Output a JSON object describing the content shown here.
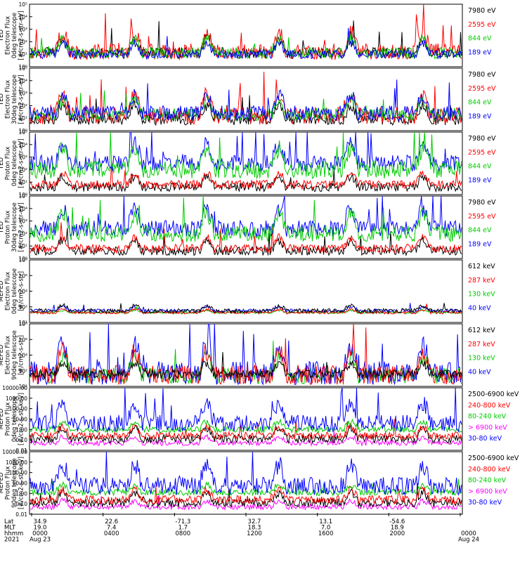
{
  "chart_data": [
    {
      "type": "line",
      "panel": "TED electron flux 0deg telescope",
      "ylabel": [
        "TED",
        "Electron Flux",
        "0deg telescope",
        "[#/cm2-s-str-eV]"
      ],
      "yscale": "log",
      "ylim": [
        1,
        100000
      ],
      "ytick_labels": [
        "10⁰",
        "10¹",
        "10²",
        "10³",
        "10⁴",
        "10⁵"
      ],
      "series": [
        {
          "name": "7980 eV",
          "color": "#000000",
          "seed": 11,
          "base": 1.1,
          "amp": 0.9,
          "spikes": 0.7
        },
        {
          "name": "2595 eV",
          "color": "#ff0000",
          "seed": 12,
          "base": 1.2,
          "amp": 1.3,
          "spikes": 0.9
        },
        {
          "name": "844 eV",
          "color": "#00cc00",
          "seed": 13,
          "base": 1.1,
          "amp": 0.9,
          "spikes": 0.3
        },
        {
          "name": "189 eV",
          "color": "#0000ff",
          "seed": 14,
          "base": 1.0,
          "amp": 0.7,
          "spikes": 0.2
        }
      ]
    },
    {
      "type": "line",
      "panel": "TED electron flux 30deg telescope",
      "ylabel": [
        "TED",
        "Electron Flux",
        "30deg telescope",
        "[#/cm2-s-str-eV]"
      ],
      "yscale": "log",
      "ylim": [
        1,
        100000
      ],
      "ytick_labels": [
        "10⁰",
        "10¹",
        "10²",
        "10³",
        "10⁴",
        "10⁵"
      ],
      "series": [
        {
          "name": "7980 eV",
          "color": "#000000",
          "seed": 21,
          "base": 0.9,
          "amp": 0.9,
          "spikes": 0.5
        },
        {
          "name": "2595 eV",
          "color": "#ff0000",
          "seed": 22,
          "base": 1.2,
          "amp": 1.4,
          "spikes": 0.8
        },
        {
          "name": "844 eV",
          "color": "#00cc00",
          "seed": 23,
          "base": 1.3,
          "amp": 1.0,
          "spikes": 0.4
        },
        {
          "name": "189 eV",
          "color": "#0000ff",
          "seed": 24,
          "base": 1.4,
          "amp": 1.2,
          "spikes": 0.6
        }
      ]
    },
    {
      "type": "line",
      "panel": "TED proton flux 0deg telescope",
      "ylabel": [
        "TED",
        "Proton Flux",
        "0deg telescope",
        "[#/cm2-s-str-eV]"
      ],
      "yscale": "log",
      "ylim": [
        1,
        100000
      ],
      "ytick_labels": [
        "10⁰",
        "10¹",
        "10²",
        "10³",
        "10⁴",
        "10⁵"
      ],
      "series": [
        {
          "name": "7980 eV",
          "color": "#000000",
          "seed": 31,
          "base": 0.6,
          "amp": 0.7,
          "spikes": 0.2
        },
        {
          "name": "2595 eV",
          "color": "#ff0000",
          "seed": 32,
          "base": 0.8,
          "amp": 0.7,
          "spikes": 0.2
        },
        {
          "name": "189 eV",
          "color": "#0000ff",
          "seed": 34,
          "base": 2.5,
          "amp": 1.3,
          "spikes": 0.9
        },
        {
          "name": "844 eV",
          "color": "#00cc00",
          "seed": 33,
          "base": 2.0,
          "amp": 1.4,
          "spikes": 0.5
        }
      ]
    },
    {
      "type": "line",
      "panel": "TED proton flux 30deg telescope",
      "ylabel": [
        "TED",
        "Proton Flux",
        "30deg telescope",
        "[#/cm2-s-str-eV]"
      ],
      "yscale": "log",
      "ylim": [
        1,
        100000
      ],
      "ytick_labels": [
        "10⁰",
        "10¹",
        "10²",
        "10³",
        "10⁴",
        "10⁵"
      ],
      "series": [
        {
          "name": "7980 eV",
          "color": "#000000",
          "seed": 41,
          "base": 0.6,
          "amp": 0.7,
          "spikes": 0.2
        },
        {
          "name": "2595 eV",
          "color": "#ff0000",
          "seed": 42,
          "base": 0.8,
          "amp": 0.7,
          "spikes": 0.2
        },
        {
          "name": "189 eV",
          "color": "#0000ff",
          "seed": 44,
          "base": 2.4,
          "amp": 1.3,
          "spikes": 0.9
        },
        {
          "name": "844 eV",
          "color": "#00cc00",
          "seed": 43,
          "base": 2.0,
          "amp": 1.3,
          "spikes": 0.5
        }
      ]
    },
    {
      "type": "line",
      "panel": "MEPED electron flux 0deg telescope",
      "ylabel": [
        "MEPED",
        "Electron Flux",
        "0deg telescope",
        "[#/cm2-s-str]"
      ],
      "yscale": "log",
      "ylim": [
        10,
        100000000
      ],
      "ytick_labels": [
        "10¹",
        "10²",
        "10⁴",
        "10⁶",
        "10⁸"
      ],
      "series": [
        {
          "name": "40 keV",
          "color": "#0000ff",
          "seed": 51,
          "base": 2.3,
          "amp": 0.4,
          "spikes": 0.2
        },
        {
          "name": "130 keV",
          "color": "#00cc00",
          "seed": 52,
          "base": 2.1,
          "amp": 0.2,
          "spikes": 0.1
        },
        {
          "name": "287 keV",
          "color": "#ff0000",
          "seed": 53,
          "base": 2.1,
          "amp": 0.3,
          "spikes": 0.1
        },
        {
          "name": "612 keV",
          "color": "#000000",
          "seed": 54,
          "base": 2.3,
          "amp": 0.5,
          "spikes": 0.2
        }
      ]
    },
    {
      "type": "line",
      "panel": "MEPED electron flux 90deg telescope",
      "ylabel": [
        "MEPED",
        "Electron Flux",
        "90deg telescope",
        "[#/cm2-s-str]"
      ],
      "yscale": "log",
      "ylim": [
        10,
        100000000
      ],
      "ytick_labels": [
        "10¹",
        "10²",
        "10⁴",
        "10⁶",
        "10⁸"
      ],
      "series": [
        {
          "name": "130 keV",
          "color": "#00cc00",
          "seed": 62,
          "base": 2.2,
          "amp": 1.8,
          "spikes": 0.3
        },
        {
          "name": "40 keV",
          "color": "#0000ff",
          "seed": 61,
          "base": 2.5,
          "amp": 2.6,
          "spikes": 0.6
        },
        {
          "name": "287 keV",
          "color": "#ff0000",
          "seed": 63,
          "base": 2.3,
          "amp": 2.2,
          "spikes": 0.4
        },
        {
          "name": "612 keV",
          "color": "#000000",
          "seed": 64,
          "base": 2.4,
          "amp": 1.0,
          "spikes": 0.2
        }
      ]
    },
    {
      "type": "line",
      "panel": "MEPED proton flux 0deg telescope",
      "ylabel": [
        "MEPED",
        "Proton Flux",
        "0deg telescope",
        "[#/cm2-s-str-keV]"
      ],
      "yscale": "log",
      "ylim": [
        0.01,
        10000
      ],
      "ytick_labels": [
        "0.01",
        "0.10",
        "1.00",
        "10.00",
        "100.00",
        "1000.00",
        "10000.00"
      ],
      "series": [
        {
          "name": "> 6900 keV",
          "color": "#ff00ff",
          "seed": 71,
          "base": -1.3,
          "amp": 0.5,
          "spikes": 0.2
        },
        {
          "name": "2500-6900 keV",
          "color": "#000000",
          "seed": 72,
          "base": -0.9,
          "amp": 0.8,
          "spikes": 0.2
        },
        {
          "name": "240-800 keV",
          "color": "#ff0000",
          "seed": 73,
          "base": -0.6,
          "amp": 0.7,
          "spikes": 0.2
        },
        {
          "name": "80-240 keV",
          "color": "#00cc00",
          "seed": 74,
          "base": 0.0,
          "amp": 0.6,
          "spikes": 0.2
        },
        {
          "name": "30-80 keV",
          "color": "#0000ff",
          "seed": 75,
          "base": 0.6,
          "amp": 1.6,
          "spikes": 0.6
        }
      ]
    },
    {
      "type": "line",
      "panel": "MEPED proton flux 90deg telescope",
      "ylabel": [
        "MEPED",
        "Proton Flux",
        "90deg telescope",
        "[#/cm2-s-str-keV]"
      ],
      "yscale": "log",
      "ylim": [
        0.01,
        10000
      ],
      "ytick_labels": [
        "0.01",
        "0.10",
        "1.00",
        "10.00",
        "100.00",
        "1000.00",
        "10000.00"
      ],
      "series": [
        {
          "name": "> 6900 keV",
          "color": "#ff00ff",
          "seed": 81,
          "base": -1.3,
          "amp": 0.5,
          "spikes": 0.2
        },
        {
          "name": "2500-6900 keV",
          "color": "#000000",
          "seed": 82,
          "base": -0.9,
          "amp": 0.8,
          "spikes": 0.2
        },
        {
          "name": "240-800 keV",
          "color": "#ff0000",
          "seed": 83,
          "base": -0.6,
          "amp": 0.8,
          "spikes": 0.2
        },
        {
          "name": "80-240 keV",
          "color": "#00cc00",
          "seed": 84,
          "base": 0.1,
          "amp": 0.6,
          "spikes": 0.2
        },
        {
          "name": "30-80 keV",
          "color": "#0000ff",
          "seed": 85,
          "base": 0.7,
          "amp": 1.7,
          "spikes": 0.7
        }
      ]
    }
  ],
  "time_axis": {
    "row_labels": [
      "Lat",
      "MLT",
      "hhmm",
      "2021"
    ],
    "ticks": [
      {
        "lat": "34.9",
        "mlt": "19.0",
        "hhmm": "0000",
        "date": "Aug 23"
      },
      {
        "lat": "22.6",
        "mlt": "7.4",
        "hhmm": "0400",
        "date": ""
      },
      {
        "lat": "-71.3",
        "mlt": "1.7",
        "hhmm": "0800",
        "date": ""
      },
      {
        "lat": "32.7",
        "mlt": "18.3",
        "hhmm": "1200",
        "date": ""
      },
      {
        "lat": "13.1",
        "mlt": "7.0",
        "hhmm": "1600",
        "date": ""
      },
      {
        "lat": "-54.6",
        "mlt": "18.9",
        "hhmm": "2000",
        "date": ""
      },
      {
        "lat": "",
        "mlt": "",
        "hhmm": "0000",
        "date": "Aug 24"
      }
    ]
  }
}
